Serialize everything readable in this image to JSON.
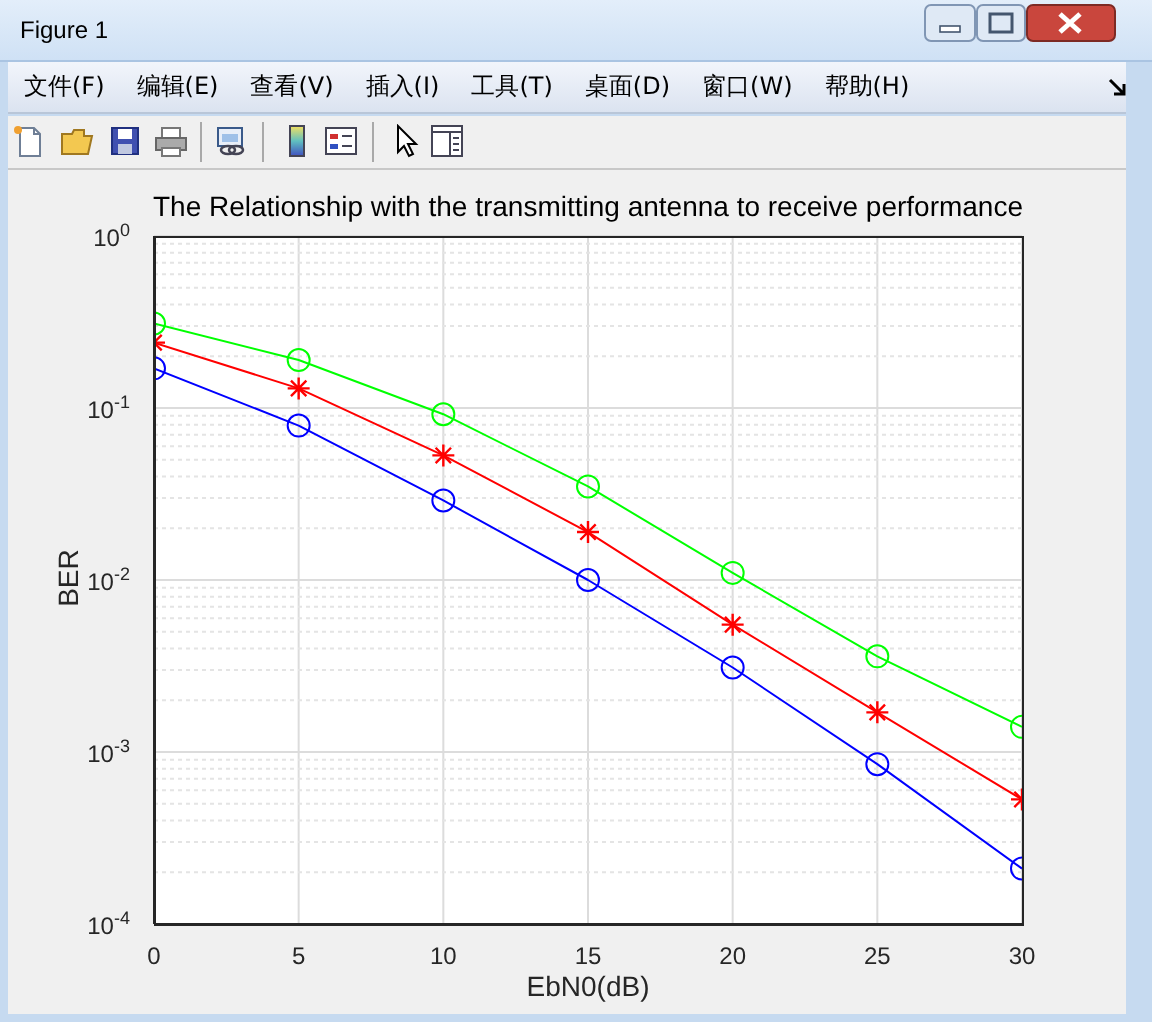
{
  "chart_data": {
    "type": "line",
    "title": "The Relationship with the transmitting antenna to receive performance",
    "xlabel": "EbN0(dB)",
    "ylabel": "BER",
    "annotations": [
      "Figure 1",
      "文件(F)",
      "编辑(E)",
      "查看(V)",
      "插入(I)",
      "工具(T)",
      "桌面(D)",
      "窗口(W)",
      "帮助(H)"
    ],
    "x": [
      0,
      5,
      10,
      15,
      20,
      25,
      30
    ],
    "series": [
      {
        "color": "#0000ff",
        "marker": "circle",
        "values": [
          0.17,
          0.079,
          0.029,
          0.01,
          0.0031,
          0.00085,
          0.00021
        ]
      },
      {
        "color": "#ff0000",
        "marker": "cross",
        "values": [
          0.24,
          0.13,
          0.053,
          0.019,
          0.0055,
          0.0017,
          0.00053
        ]
      },
      {
        "color": "#00ff00",
        "marker": "circle",
        "values": [
          0.31,
          0.19,
          0.092,
          0.035,
          0.011,
          0.0036,
          0.0014
        ]
      }
    ],
    "log": "y",
    "xlim": [
      0,
      30
    ],
    "xticks": [
      0,
      5,
      10,
      15,
      20,
      25,
      30
    ],
    "ylim": [
      0.0001,
      1
    ],
    "yticks": [
      {
        "value": 0.0001,
        "label": "10$^{-4}$"
      },
      {
        "value": 0.001,
        "label": "10$^{-3}$"
      },
      {
        "value": 0.01,
        "label": "10$^{-2}$"
      },
      {
        "value": 0.1,
        "label": "10$^{-1}$"
      },
      {
        "value": 1,
        "label": "10$^{0}$"
      }
    ],
    "grid": true,
    "line_style": "solid"
  }
}
